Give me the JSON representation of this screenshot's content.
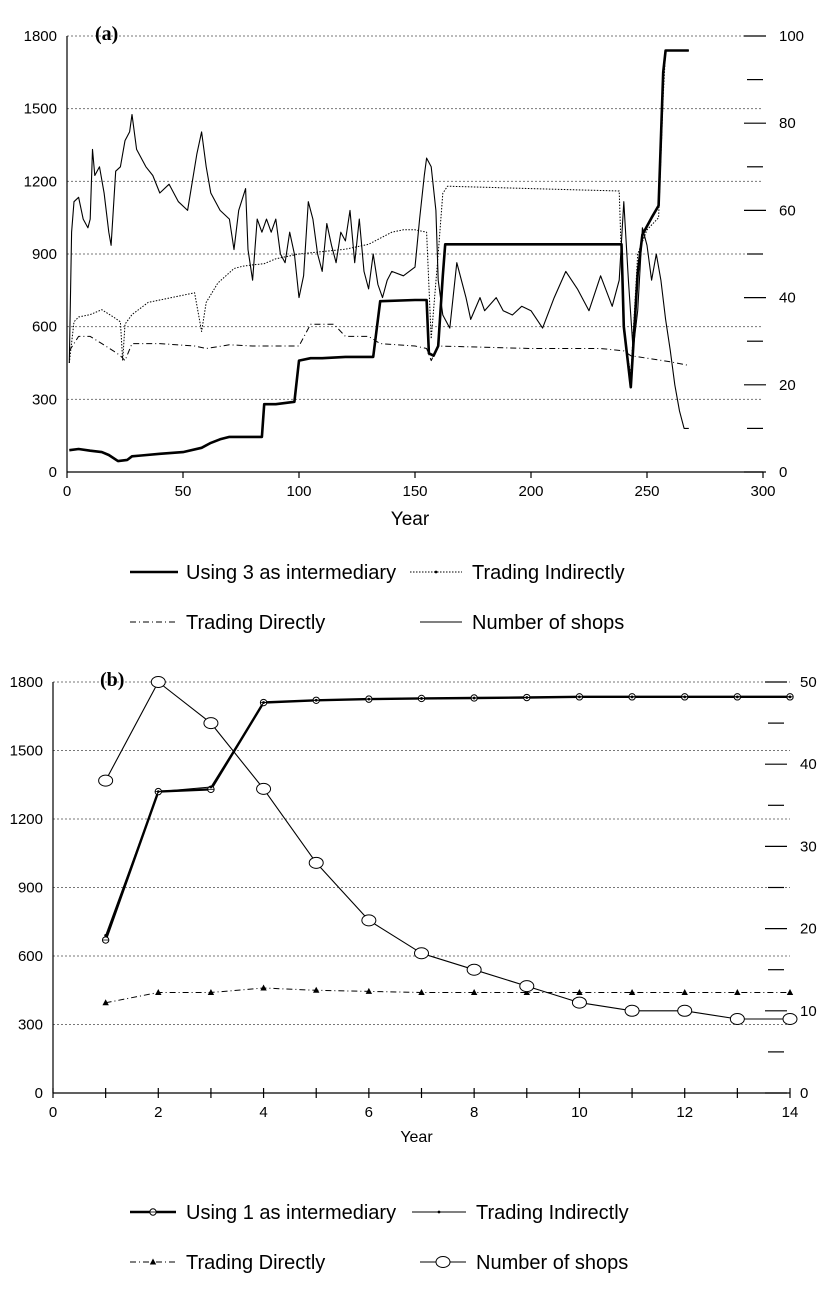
{
  "chart_data": [
    {
      "type": "line",
      "panel_label": "(a)",
      "xlabel": "Year",
      "x_ticks": [
        0,
        50,
        100,
        150,
        200,
        250,
        300
      ],
      "xlim": [
        0,
        300
      ],
      "y_left_ticks": [
        0,
        300,
        600,
        900,
        1200,
        1500,
        1800
      ],
      "ylim_left": [
        0,
        1800
      ],
      "y_right_ticks": [
        0,
        20,
        40,
        60,
        80,
        100
      ],
      "ylim_right": [
        0,
        100
      ],
      "grid": "horizontal dashed",
      "legend_position": "below",
      "series": [
        {
          "name": "Using 3 as intermediary",
          "axis": "left",
          "style": "thick",
          "points": [
            [
              1,
              90
            ],
            [
              5,
              95
            ],
            [
              10,
              88
            ],
            [
              15,
              82
            ],
            [
              18,
              70
            ],
            [
              22,
              45
            ],
            [
              26,
              50
            ],
            [
              28,
              65
            ],
            [
              32,
              68
            ],
            [
              40,
              75
            ],
            [
              50,
              82
            ],
            [
              58,
              100
            ],
            [
              62,
              120
            ],
            [
              66,
              135
            ],
            [
              70,
              145
            ],
            [
              75,
              145
            ],
            [
              84,
              145
            ],
            [
              85,
              280
            ],
            [
              90,
              280
            ],
            [
              98,
              290
            ],
            [
              100,
              460
            ],
            [
              105,
              470
            ],
            [
              110,
              470
            ],
            [
              120,
              475
            ],
            [
              132,
              475
            ],
            [
              135,
              705
            ],
            [
              150,
              710
            ],
            [
              155,
              710
            ],
            [
              156,
              490
            ],
            [
              158,
              480
            ],
            [
              160,
              520
            ],
            [
              162,
              810
            ],
            [
              163,
              940
            ],
            [
              200,
              940
            ],
            [
              239,
              940
            ],
            [
              240,
              600
            ],
            [
              243,
              350
            ],
            [
              246,
              820
            ],
            [
              248,
              980
            ],
            [
              252,
              1050
            ],
            [
              255,
              1100
            ],
            [
              257,
              1650
            ],
            [
              258,
              1740
            ],
            [
              268,
              1740
            ]
          ]
        },
        {
          "name": "Trading Indirectly",
          "axis": "left",
          "style": "thin-dotted",
          "points": [
            [
              1,
              450
            ],
            [
              3,
              620
            ],
            [
              5,
              640
            ],
            [
              10,
              650
            ],
            [
              15,
              670
            ],
            [
              20,
              640
            ],
            [
              23,
              620
            ],
            [
              24,
              460
            ],
            [
              25,
              610
            ],
            [
              28,
              650
            ],
            [
              35,
              700
            ],
            [
              45,
              720
            ],
            [
              55,
              740
            ],
            [
              58,
              580
            ],
            [
              60,
              700
            ],
            [
              65,
              780
            ],
            [
              72,
              840
            ],
            [
              76,
              850
            ],
            [
              80,
              855
            ],
            [
              85,
              860
            ],
            [
              90,
              880
            ],
            [
              100,
              900
            ],
            [
              110,
              910
            ],
            [
              120,
              920
            ],
            [
              130,
              940
            ],
            [
              140,
              990
            ],
            [
              145,
              1000
            ],
            [
              150,
              1000
            ],
            [
              155,
              990
            ],
            [
              157,
              550
            ],
            [
              160,
              900
            ],
            [
              162,
              1150
            ],
            [
              164,
              1180
            ],
            [
              200,
              1170
            ],
            [
              238,
              1160
            ],
            [
              240,
              580
            ],
            [
              243,
              400
            ],
            [
              246,
              900
            ],
            [
              250,
              1000
            ],
            [
              255,
              1050
            ],
            [
              257,
              1550
            ],
            [
              258,
              1740
            ],
            [
              268,
              1740
            ]
          ]
        },
        {
          "name": "Trading Directly",
          "axis": "left",
          "style": "dash-dot",
          "points": [
            [
              1,
              500
            ],
            [
              5,
              560
            ],
            [
              10,
              560
            ],
            [
              15,
              530
            ],
            [
              20,
              500
            ],
            [
              23,
              480
            ],
            [
              25,
              460
            ],
            [
              28,
              530
            ],
            [
              40,
              530
            ],
            [
              55,
              520
            ],
            [
              60,
              510
            ],
            [
              70,
              525
            ],
            [
              80,
              520
            ],
            [
              90,
              520
            ],
            [
              100,
              520
            ],
            [
              105,
              610
            ],
            [
              115,
              610
            ],
            [
              120,
              560
            ],
            [
              130,
              560
            ],
            [
              135,
              530
            ],
            [
              150,
              520
            ],
            [
              155,
              510
            ],
            [
              157,
              460
            ],
            [
              160,
              520
            ],
            [
              200,
              510
            ],
            [
              230,
              510
            ],
            [
              240,
              500
            ],
            [
              243,
              480
            ],
            [
              250,
              470
            ],
            [
              260,
              455
            ],
            [
              268,
              440
            ]
          ]
        },
        {
          "name": "Number of shops",
          "axis": "right",
          "style": "thin",
          "points": [
            [
              1,
              25
            ],
            [
              2,
              55
            ],
            [
              3,
              62
            ],
            [
              5,
              63
            ],
            [
              7,
              58
            ],
            [
              9,
              56
            ],
            [
              10,
              58
            ],
            [
              11,
              74
            ],
            [
              12,
              68
            ],
            [
              14,
              70
            ],
            [
              16,
              64
            ],
            [
              18,
              55
            ],
            [
              19,
              52
            ],
            [
              21,
              69
            ],
            [
              23,
              70
            ],
            [
              25,
              76
            ],
            [
              27,
              78
            ],
            [
              28,
              82
            ],
            [
              30,
              74
            ],
            [
              34,
              70
            ],
            [
              37,
              68
            ],
            [
              40,
              64
            ],
            [
              44,
              66
            ],
            [
              48,
              62
            ],
            [
              52,
              60
            ],
            [
              56,
              73
            ],
            [
              58,
              78
            ],
            [
              60,
              70
            ],
            [
              62,
              64
            ],
            [
              66,
              60
            ],
            [
              70,
              58
            ],
            [
              72,
              51
            ],
            [
              74,
              60
            ],
            [
              77,
              65
            ],
            [
              78,
              51
            ],
            [
              80,
              44
            ],
            [
              82,
              58
            ],
            [
              84,
              55
            ],
            [
              86,
              58
            ],
            [
              88,
              55
            ],
            [
              90,
              58
            ],
            [
              92,
              50
            ],
            [
              94,
              48
            ],
            [
              96,
              55
            ],
            [
              98,
              50
            ],
            [
              100,
              40
            ],
            [
              102,
              45
            ],
            [
              104,
              62
            ],
            [
              106,
              58
            ],
            [
              108,
              50
            ],
            [
              110,
              46
            ],
            [
              112,
              57
            ],
            [
              114,
              52
            ],
            [
              116,
              48
            ],
            [
              118,
              55
            ],
            [
              120,
              53
            ],
            [
              122,
              60
            ],
            [
              124,
              48
            ],
            [
              126,
              58
            ],
            [
              128,
              46
            ],
            [
              130,
              42
            ],
            [
              132,
              50
            ],
            [
              134,
              43
            ],
            [
              136,
              40
            ],
            [
              138,
              44
            ],
            [
              140,
              46
            ],
            [
              145,
              45
            ],
            [
              150,
              47
            ],
            [
              152,
              58
            ],
            [
              154,
              68
            ],
            [
              155,
              72
            ],
            [
              157,
              70
            ],
            [
              159,
              60
            ],
            [
              160,
              44
            ],
            [
              162,
              36
            ],
            [
              165,
              33
            ],
            [
              168,
              48
            ],
            [
              170,
              44
            ],
            [
              172,
              40
            ],
            [
              174,
              35
            ],
            [
              178,
              40
            ],
            [
              180,
              37
            ],
            [
              185,
              40
            ],
            [
              188,
              37
            ],
            [
              192,
              36
            ],
            [
              196,
              38
            ],
            [
              200,
              37
            ],
            [
              205,
              33
            ],
            [
              210,
              40
            ],
            [
              215,
              46
            ],
            [
              220,
              42
            ],
            [
              225,
              37
            ],
            [
              230,
              45
            ],
            [
              235,
              38
            ],
            [
              238,
              44
            ],
            [
              240,
              62
            ],
            [
              242,
              44
            ],
            [
              244,
              28
            ],
            [
              246,
              37
            ],
            [
              248,
              56
            ],
            [
              250,
              52
            ],
            [
              252,
              44
            ],
            [
              254,
              50
            ],
            [
              256,
              44
            ],
            [
              258,
              35
            ],
            [
              260,
              28
            ],
            [
              262,
              20
            ],
            [
              264,
              14
            ],
            [
              266,
              10
            ],
            [
              268,
              10
            ]
          ]
        }
      ]
    },
    {
      "type": "line",
      "panel_label": "(b)",
      "xlabel": "Year",
      "x_ticks": [
        0,
        2,
        4,
        6,
        8,
        10,
        12,
        14
      ],
      "xlim": [
        0,
        14
      ],
      "y_left_ticks": [
        0,
        300,
        600,
        900,
        1200,
        1500,
        1800
      ],
      "ylim_left": [
        0,
        1800
      ],
      "y_right_ticks": [
        0,
        10,
        20,
        30,
        40,
        50
      ],
      "ylim_right": [
        0,
        50
      ],
      "grid": "horizontal dashed",
      "legend_position": "below",
      "series": [
        {
          "name": "Using 1 as intermediary",
          "axis": "left",
          "style": "thick-crossed-circle",
          "x": [
            1,
            2,
            3,
            4,
            5,
            6,
            7,
            8,
            9,
            10,
            11,
            12,
            13,
            14
          ],
          "values": [
            670,
            1320,
            1330,
            1710,
            1720,
            1725,
            1728,
            1730,
            1732,
            1735,
            1735,
            1735,
            1735,
            1735
          ]
        },
        {
          "name": "Trading Indirectly",
          "axis": "left",
          "style": "thin-dot",
          "x": [
            1,
            2,
            3,
            4,
            5,
            6,
            7,
            8,
            9,
            10,
            11,
            12,
            13,
            14
          ],
          "values": [
            690,
            1320,
            1340,
            1710,
            1720,
            1725,
            1728,
            1730,
            1732,
            1735,
            1735,
            1735,
            1735,
            1735
          ]
        },
        {
          "name": "Trading Directly",
          "axis": "left",
          "style": "dash-dot-triangle",
          "x": [
            1,
            2,
            3,
            4,
            5,
            6,
            7,
            8,
            9,
            10,
            11,
            12,
            13,
            14
          ],
          "values": [
            395,
            440,
            440,
            460,
            450,
            445,
            440,
            440,
            440,
            440,
            440,
            440,
            440,
            440
          ]
        },
        {
          "name": "Number of shops",
          "axis": "right",
          "style": "thin-open-circle",
          "x": [
            1,
            2,
            3,
            4,
            5,
            6,
            7,
            8,
            9,
            10,
            11,
            12,
            13,
            14
          ],
          "values": [
            38,
            50,
            45,
            37,
            28,
            21,
            17,
            15,
            13,
            11,
            10,
            10,
            9,
            9
          ]
        }
      ]
    }
  ]
}
